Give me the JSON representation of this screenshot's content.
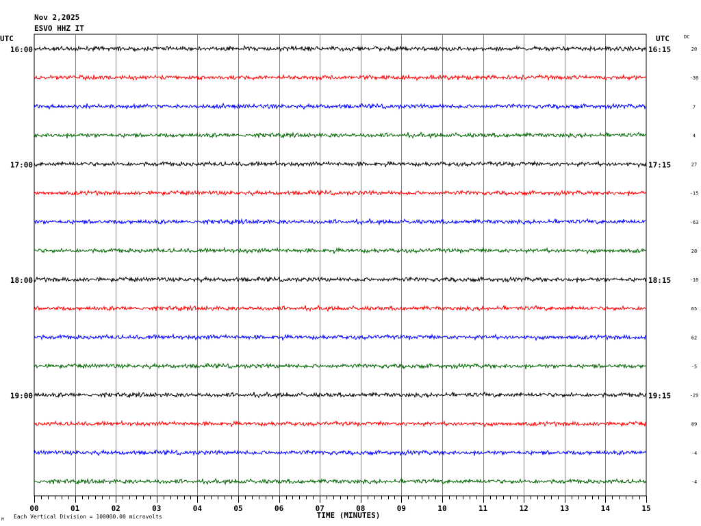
{
  "header": {
    "date": "Nov 2,2025",
    "station": "ESVO HHZ IT",
    "utc_left": "UTC",
    "utc_right": "UTC",
    "dc_label": "DC"
  },
  "footer": {
    "scale_note": "Each Vertical Division = 100000.00 microvolts",
    "corner_mark": "M"
  },
  "chart_data": {
    "type": "line",
    "title": "",
    "xlabel": "TIME (MINUTES)",
    "ylabel": "",
    "xlim": [
      0,
      15
    ],
    "x_ticks": [
      "00",
      "01",
      "02",
      "03",
      "04",
      "05",
      "06",
      "07",
      "08",
      "09",
      "10",
      "11",
      "12",
      "13",
      "14",
      "15"
    ],
    "grid": true,
    "minor_ticks_per_minute": 6,
    "trace_colors": [
      "#000000",
      "#ff0000",
      "#0000ff",
      "#006600"
    ],
    "left_time_labels": [
      "16:00",
      "",
      "",
      "",
      "17:00",
      "",
      "",
      "",
      "18:00",
      "",
      "",
      "",
      "19:00",
      "",
      "",
      ""
    ],
    "right_time_labels": [
      "16:15",
      "",
      "",
      "",
      "17:15",
      "",
      "",
      "",
      "18:15",
      "",
      "",
      "",
      "19:15",
      "",
      "",
      ""
    ],
    "dc_offsets": [
      "20",
      "-30",
      "7",
      "4",
      "27",
      "-15",
      "-63",
      "28",
      "-10",
      "65",
      "62",
      "-5",
      "-29",
      "89",
      "-4",
      "-4"
    ],
    "trace_amplitude_divisions": 0.07
  }
}
